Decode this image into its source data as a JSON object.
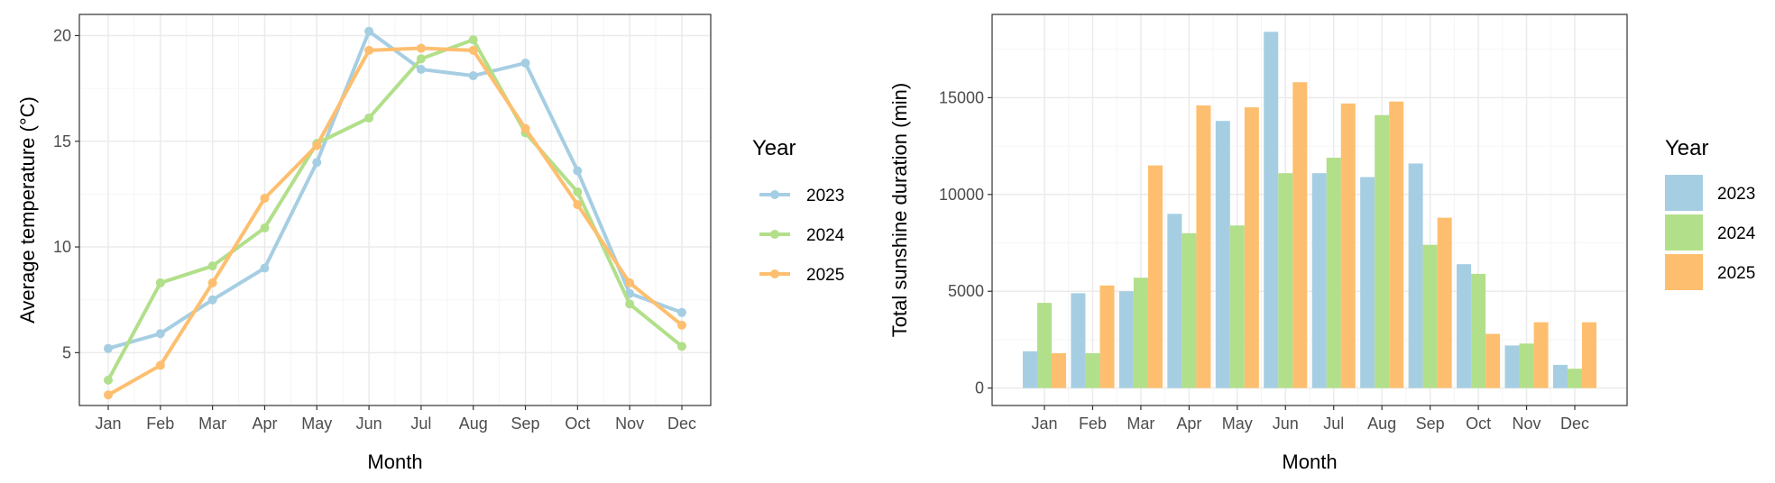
{
  "colors": {
    "2023": "#a6cee3",
    "2024": "#b2df8a",
    "2025": "#fdbf6f",
    "grid_major": "#ebebeb",
    "grid_minor": "#f5f5f5",
    "panel_border": "#333333",
    "tick_text": "#4d4d4d"
  },
  "chart_data": [
    {
      "type": "line",
      "markers": true,
      "categories": [
        "Jan",
        "Feb",
        "Mar",
        "Apr",
        "May",
        "Jun",
        "Jul",
        "Aug",
        "Sep",
        "Oct",
        "Nov",
        "Dec"
      ],
      "series": [
        {
          "name": "2023",
          "values": [
            5.2,
            5.9,
            7.5,
            9.0,
            14.0,
            20.2,
            18.4,
            18.1,
            18.7,
            13.6,
            7.8,
            6.9
          ]
        },
        {
          "name": "2024",
          "values": [
            3.7,
            8.3,
            9.1,
            10.9,
            14.9,
            16.1,
            18.9,
            19.8,
            15.4,
            12.6,
            7.3,
            5.3
          ]
        },
        {
          "name": "2025",
          "values": [
            3.0,
            4.4,
            8.3,
            12.3,
            14.8,
            19.3,
            19.4,
            19.3,
            15.6,
            12.0,
            8.3,
            6.3
          ]
        }
      ],
      "title": "",
      "xlabel": "Month",
      "ylabel": "Average temperature (°C)",
      "ylim": [
        2.5,
        21
      ],
      "yticks": [
        5,
        10,
        15,
        20
      ],
      "grid": true,
      "legend": {
        "title": "Year",
        "position": "right"
      }
    },
    {
      "type": "bar",
      "grouped": true,
      "categories": [
        "Jan",
        "Feb",
        "Mar",
        "Apr",
        "May",
        "Jun",
        "Jul",
        "Aug",
        "Sep",
        "Oct",
        "Nov",
        "Dec"
      ],
      "series": [
        {
          "name": "2023",
          "values": [
            1900,
            4900,
            5000,
            9000,
            13800,
            18400,
            11100,
            10900,
            11600,
            6400,
            2200,
            1200
          ]
        },
        {
          "name": "2024",
          "values": [
            4400,
            1800,
            5700,
            8000,
            8400,
            11100,
            11900,
            14100,
            7400,
            5900,
            2300,
            1000
          ]
        },
        {
          "name": "2025",
          "values": [
            1800,
            5300,
            11500,
            14600,
            14500,
            15800,
            14700,
            14800,
            8800,
            2800,
            3400,
            3400
          ]
        }
      ],
      "title": "",
      "xlabel": "Month",
      "ylabel": "Total sunshine duration (min)",
      "ylim": [
        -900,
        19300
      ],
      "yticks": [
        0,
        5000,
        10000,
        15000
      ],
      "grid": true,
      "legend": {
        "title": "Year",
        "position": "right"
      }
    }
  ]
}
